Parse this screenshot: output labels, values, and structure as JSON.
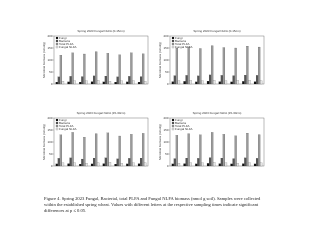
{
  "chart_data": [
    {
      "type": "bar",
      "title": "Spring 2023 Fungal NLFA (0-15cm)",
      "y_label": "Microbial biomass (nmol/g)",
      "categories": [
        null,
        null,
        null,
        null,
        null,
        null,
        null,
        null
      ],
      "ylim": [
        0,
        200
      ],
      "yticks": [
        0,
        50,
        100,
        150,
        200
      ],
      "series": [
        {
          "name": "Fungi",
          "color": "#111111",
          "values": [
            8,
            9,
            8,
            10,
            9,
            8,
            9,
            8
          ]
        },
        {
          "name": "Bacteria",
          "color": "#555555",
          "values": [
            30,
            32,
            31,
            34,
            33,
            30,
            32,
            31
          ]
        },
        {
          "name": "Total PLFA",
          "color": "#9a9a9a",
          "values": [
            120,
            130,
            125,
            135,
            128,
            122,
            130,
            126
          ]
        },
        {
          "name": "Fungal NLFA",
          "color": "#e6e6e6",
          "values": [
            12,
            14,
            13,
            15,
            12,
            13,
            14,
            12
          ]
        }
      ]
    },
    {
      "type": "bar",
      "title": "Spring 2023 Fungal NLFA (0-15cm)",
      "y_label": "Microbial biomass (nmol/g)",
      "categories": [
        null,
        null,
        null,
        null,
        null,
        null,
        null,
        null
      ],
      "ylim": [
        0,
        200
      ],
      "yticks": [
        0,
        50,
        100,
        150,
        200
      ],
      "series": [
        {
          "name": "Fungi",
          "color": "#111111",
          "values": [
            10,
            11,
            9,
            12,
            10,
            9,
            11,
            10
          ]
        },
        {
          "name": "Bacteria",
          "color": "#555555",
          "values": [
            35,
            36,
            34,
            38,
            36,
            35,
            37,
            36
          ]
        },
        {
          "name": "Total PLFA",
          "color": "#9a9a9a",
          "values": [
            150,
            155,
            148,
            160,
            152,
            150,
            158,
            154
          ]
        },
        {
          "name": "Fungal NLFA",
          "color": "#e6e6e6",
          "values": [
            14,
            15,
            13,
            16,
            14,
            15,
            16,
            14
          ]
        }
      ]
    },
    {
      "type": "bar",
      "title": "Spring 2023 Fungal NLFA (15-30cm)",
      "y_label": "Microbial biomass (nmol/g)",
      "categories": [
        null,
        null,
        null,
        null,
        null,
        null,
        null,
        null
      ],
      "ylim": [
        0,
        200
      ],
      "yticks": [
        0,
        50,
        100,
        150,
        200
      ],
      "series": [
        {
          "name": "Fungi",
          "color": "#111111",
          "values": [
            9,
            10,
            8,
            9,
            10,
            8,
            9,
            10
          ]
        },
        {
          "name": "Bacteria",
          "color": "#555555",
          "values": [
            32,
            34,
            29,
            33,
            34,
            30,
            32,
            33
          ]
        },
        {
          "name": "Total PLFA",
          "color": "#9a9a9a",
          "values": [
            130,
            140,
            120,
            135,
            138,
            125,
            132,
            136
          ]
        },
        {
          "name": "Fungal NLFA",
          "color": "#e6e6e6",
          "values": [
            13,
            14,
            12,
            14,
            15,
            12,
            13,
            14
          ]
        }
      ]
    },
    {
      "type": "bar",
      "title": "Spring 2023 Fungal NLFA (15-30cm)",
      "y_label": "Microbial biomass (nmol/g)",
      "categories": [
        null,
        null,
        null,
        null,
        null,
        null,
        null,
        null
      ],
      "ylim": [
        0,
        200
      ],
      "yticks": [
        0,
        50,
        100,
        150,
        200
      ],
      "series": [
        {
          "name": "Fungi",
          "color": "#111111",
          "values": [
            9,
            10,
            9,
            11,
            10,
            9,
            10,
            9
          ]
        },
        {
          "name": "Bacteria",
          "color": "#555555",
          "values": [
            31,
            33,
            32,
            35,
            33,
            31,
            34,
            32
          ]
        },
        {
          "name": "Total PLFA",
          "color": "#9a9a9a",
          "values": [
            128,
            135,
            130,
            140,
            132,
            126,
            137,
            131
          ]
        },
        {
          "name": "Fungal NLFA",
          "color": "#e6e6e6",
          "values": [
            12,
            14,
            13,
            15,
            13,
            12,
            14,
            13
          ]
        }
      ]
    }
  ],
  "caption": "Figure 4. Spring 2023 Fungal, Bacterial, total PLFA and Fungal NLFA biomass (nmol g soil). Samples were collected within the established spring wheat. Values with different letters at the respective sampling times indicate significant differences at p ≤ 0.05."
}
